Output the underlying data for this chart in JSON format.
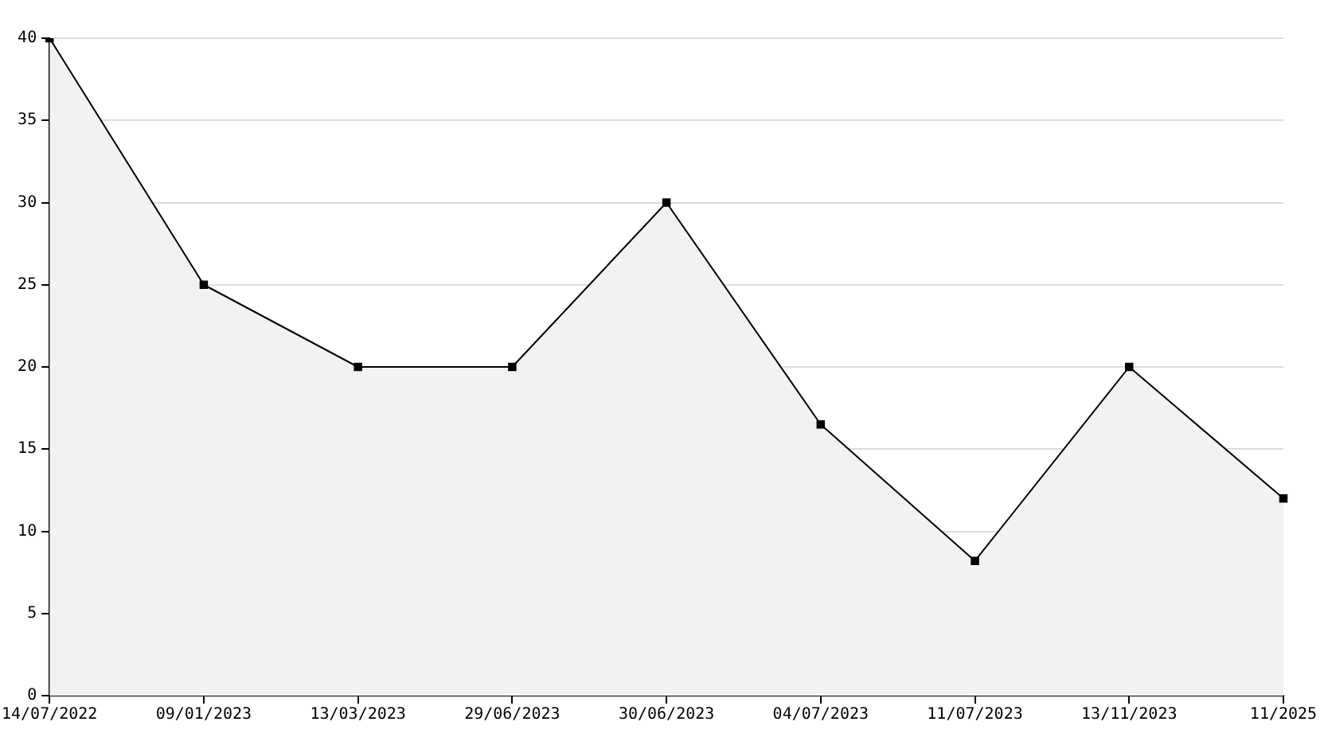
{
  "chart_data": {
    "type": "area",
    "categories": [
      "14/07/2022",
      "09/01/2023",
      "13/03/2023",
      "29/06/2023",
      "30/06/2023",
      "04/07/2023",
      "11/07/2023",
      "13/11/2023",
      "11/2025"
    ],
    "values": [
      40,
      25,
      20,
      20,
      30,
      16.5,
      8.2,
      20,
      12
    ],
    "color": "#000000",
    "ylim": [
      0,
      40
    ],
    "yticks": [
      0,
      5,
      10,
      15,
      20,
      25,
      30,
      35,
      40
    ],
    "grid": "y",
    "marker": "square",
    "line_style": "solid"
  }
}
